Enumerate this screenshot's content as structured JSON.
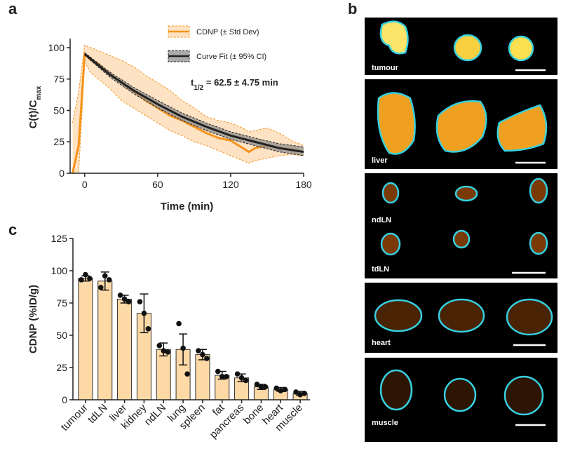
{
  "panel_labels": [
    "a",
    "b",
    "c"
  ],
  "images": {
    "labels": [
      "tumour",
      "liver",
      "ndLN",
      "tdLN",
      "heart",
      "muscle"
    ]
  },
  "chart_data": [
    {
      "type": "line",
      "x": [
        -10,
        -5,
        0,
        5,
        10,
        15,
        20,
        30,
        40,
        50,
        60,
        70,
        80,
        90,
        100,
        110,
        120,
        130,
        135,
        140,
        150,
        160,
        170,
        180
      ],
      "xlim": [
        -12,
        180
      ],
      "ylim": [
        0,
        105
      ],
      "xticks": [
        0,
        60,
        120,
        180
      ],
      "yticks": [
        0,
        25,
        50,
        75,
        100
      ],
      "xlabel": "Time (min)",
      "ylabel": {
        "base": "C(t)/C",
        "sub": "max"
      },
      "annotation": {
        "base": "t",
        "sub": "1/2",
        "rest": " = 62.5 ± 4.75 min"
      },
      "series": [
        {
          "name": "CDNP (± Std Dev)",
          "color": "#f7941d",
          "band_color": "#fde3c4",
          "values": [
            0,
            22,
            95,
            90,
            88,
            84,
            80,
            72,
            65,
            58,
            52,
            46,
            42,
            37,
            32,
            28,
            26,
            20,
            17,
            20,
            22,
            20,
            19,
            17
          ],
          "upper": [
            40,
            65,
            102,
            100,
            98,
            96,
            94,
            90,
            85,
            78,
            72,
            66,
            58,
            52,
            45,
            42,
            40,
            36,
            33,
            34,
            36,
            32,
            26,
            22
          ],
          "lower": [
            0,
            0,
            88,
            80,
            76,
            72,
            68,
            58,
            52,
            46,
            40,
            34,
            30,
            25,
            22,
            18,
            14,
            10,
            8,
            10,
            12,
            14,
            15,
            14
          ]
        },
        {
          "name": "Curve Fit (± 95% CI)",
          "color": "#222222",
          "band_color": "#888888",
          "x": [
            0,
            20,
            40,
            60,
            80,
            100,
            120,
            140,
            160,
            180
          ],
          "values": [
            95,
            79,
            66,
            55,
            45,
            37,
            30,
            25,
            20,
            17
          ],
          "upper": [
            96,
            81,
            68.5,
            58,
            48,
            40,
            33,
            28,
            23.5,
            21
          ],
          "lower": [
            94,
            77,
            63.5,
            52,
            42,
            34,
            27,
            22,
            17,
            14
          ]
        }
      ]
    },
    {
      "type": "bar",
      "categories": [
        "tumour",
        "tdLN",
        "liver",
        "kidney",
        "ndLN",
        "lung",
        "spleen",
        "fat",
        "pancreas",
        "bone",
        "heart",
        "muscle"
      ],
      "values": [
        94,
        92,
        78,
        67,
        39,
        39,
        35,
        19,
        17,
        10,
        8,
        5
      ],
      "errors": [
        2,
        7,
        3,
        15,
        5,
        12,
        4,
        3,
        3,
        2,
        1.5,
        1.5
      ],
      "points": [
        [
          93,
          97,
          94
        ],
        [
          87,
          96,
          93
        ],
        [
          81,
          78,
          76
        ],
        [
          76,
          67,
          55
        ],
        [
          42,
          38,
          37
        ],
        [
          59,
          40,
          20
        ],
        [
          38,
          35,
          32
        ],
        [
          22,
          18,
          18
        ],
        [
          20,
          17,
          15
        ],
        [
          12,
          10,
          10
        ],
        [
          9,
          7,
          8
        ],
        [
          6,
          4,
          5
        ]
      ],
      "color": "#fdd9a6",
      "ylim": [
        0,
        125
      ],
      "yticks": [
        0,
        25,
        50,
        75,
        100,
        125
      ],
      "ylabel": "CDNP (%ID/g)"
    }
  ]
}
